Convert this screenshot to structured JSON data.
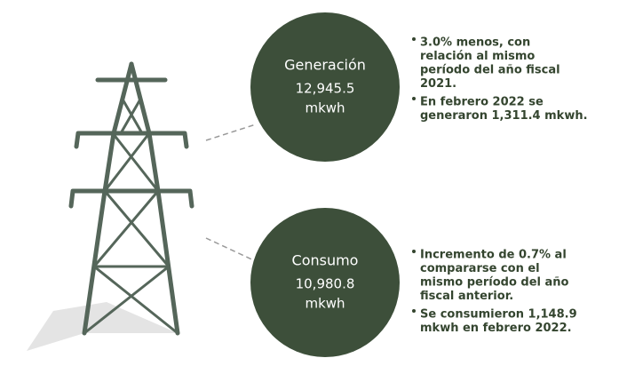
{
  "items": [
    {
      "label": "Generación",
      "value": "12,945.5",
      "unit": "mkwh",
      "bullets": [
        [
          "3.0% menos, con",
          "relación al mismo",
          "período del año fiscal",
          "2021."
        ],
        [
          "En febrero 2022 se",
          "generaron 1,311.4 mkwh."
        ]
      ]
    },
    {
      "label": "Consumo",
      "value": "10,980.8",
      "unit": "mkwh",
      "bullets": [
        [
          "Incremento de 0.7% al",
          "compararse con el",
          "mismo período del año",
          "fiscal anterior."
        ],
        [
          "Se consumieron 1,148.9",
          "mkwh en febrero 2022."
        ]
      ]
    }
  ]
}
